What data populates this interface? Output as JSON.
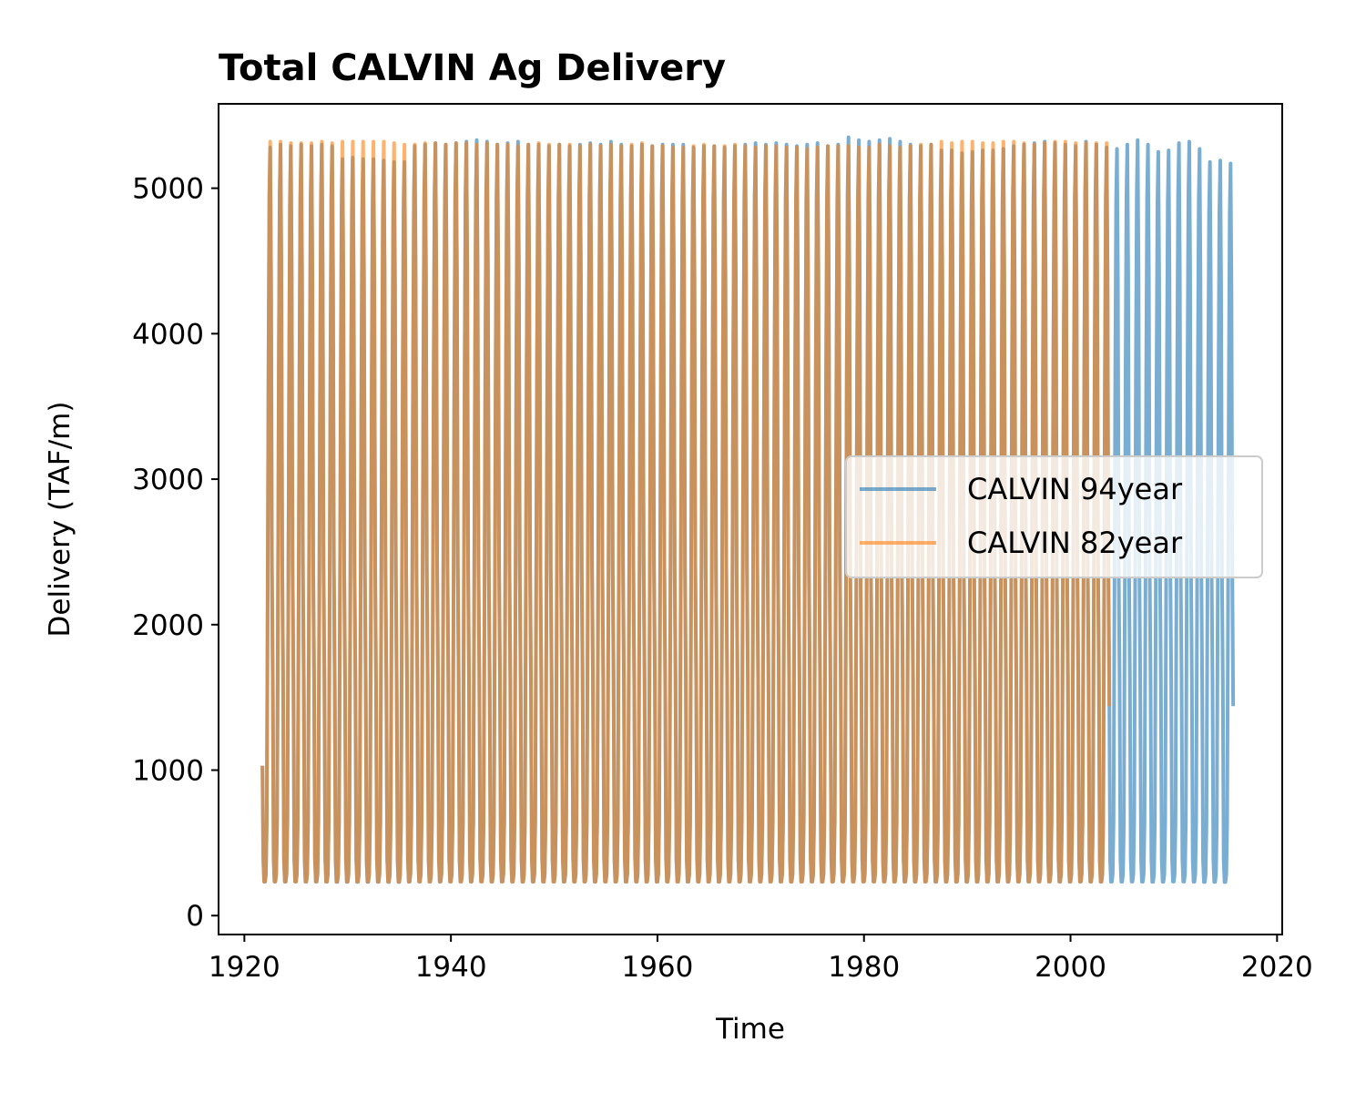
{
  "chart_data": {
    "type": "line",
    "title": "Total CALVIN Ag Delivery",
    "xlabel": "Time",
    "ylabel": "Delivery (TAF/m)",
    "xlim": [
      1917.5,
      2020.5
    ],
    "ylim": [
      -130,
      5580
    ],
    "xticks": [
      1920,
      1940,
      1960,
      1980,
      2000,
      2020
    ],
    "yticks": [
      0,
      1000,
      2000,
      3000,
      4000,
      5000
    ],
    "grid": false,
    "legend_position": "center-right",
    "x_unit": "year",
    "sampling": "monthly",
    "series": [
      {
        "name": "CALVIN 94year",
        "color": "#1f77b4",
        "alpha": 0.6,
        "start": 1921.75,
        "end": 2015.75,
        "annual_peaks": [
          5280,
          5300,
          5290,
          5300,
          5290,
          5300,
          5290,
          5200,
          5210,
          5200,
          5200,
          5190,
          5180,
          5180,
          5290,
          5300,
          5310,
          5300,
          5310,
          5320,
          5330,
          5320,
          5300,
          5310,
          5320,
          5300,
          5300,
          5290,
          5300,
          5290,
          5300,
          5310,
          5300,
          5320,
          5300,
          5290,
          5300,
          5290,
          5300,
          5300,
          5300,
          5280,
          5290,
          5290,
          5280,
          5290,
          5300,
          5310,
          5300,
          5310,
          5300,
          5290,
          5300,
          5310,
          5290,
          5300,
          5350,
          5330,
          5320,
          5330,
          5340,
          5320,
          5300,
          5290,
          5300,
          5260,
          5260,
          5240,
          5250,
          5260,
          5260,
          5270,
          5290,
          5300,
          5310,
          5320,
          5310,
          5300,
          5290,
          5320,
          5300,
          5280,
          5270,
          5300,
          5330,
          5300,
          5250,
          5260,
          5310,
          5320,
          5270,
          5180,
          5190,
          5170
        ],
        "annual_troughs": [
          130,
          130,
          130,
          130,
          130,
          130,
          130,
          130,
          130,
          130,
          130,
          130,
          130,
          130,
          130,
          130,
          130,
          130,
          130,
          130,
          130,
          130,
          130,
          130,
          130,
          130,
          130,
          130,
          130,
          130,
          130,
          130,
          130,
          130,
          130,
          130,
          130,
          130,
          130,
          130,
          130,
          130,
          130,
          130,
          130,
          130,
          130,
          130,
          130,
          130,
          130,
          130,
          130,
          130,
          130,
          130,
          130,
          130,
          130,
          130,
          130,
          130,
          130,
          130,
          130,
          130,
          130,
          130,
          130,
          130,
          130,
          130,
          130,
          130,
          130,
          130,
          130,
          130,
          130,
          130,
          130,
          130,
          130,
          130,
          130,
          130,
          130,
          130,
          130,
          130,
          130,
          130,
          130,
          130
        ],
        "start_value": 1030,
        "end_value": 1440
      },
      {
        "name": "CALVIN 82year",
        "color": "#ff7f0e",
        "alpha": 0.6,
        "start": 1921.75,
        "end": 2003.75,
        "annual_peaks": [
          5320,
          5320,
          5310,
          5310,
          5310,
          5320,
          5310,
          5320,
          5320,
          5320,
          5320,
          5320,
          5310,
          5300,
          5300,
          5310,
          5310,
          5300,
          5310,
          5310,
          5300,
          5310,
          5300,
          5300,
          5290,
          5300,
          5310,
          5300,
          5300,
          5300,
          5290,
          5300,
          5290,
          5300,
          5290,
          5300,
          5310,
          5290,
          5290,
          5280,
          5280,
          5290,
          5300,
          5290,
          5290,
          5300,
          5290,
          5280,
          5290,
          5290,
          5280,
          5280,
          5270,
          5280,
          5290,
          5290,
          5290,
          5280,
          5280,
          5300,
          5290,
          5280,
          5290,
          5300,
          5300,
          5320,
          5310,
          5320,
          5320,
          5310,
          5310,
          5320,
          5320,
          5310,
          5300,
          5310,
          5320,
          5320,
          5310,
          5310,
          5310,
          5310
        ],
        "annual_troughs": [
          130,
          130,
          130,
          130,
          130,
          130,
          130,
          130,
          130,
          130,
          130,
          130,
          130,
          130,
          130,
          130,
          130,
          130,
          130,
          130,
          130,
          130,
          130,
          130,
          130,
          130,
          130,
          130,
          130,
          130,
          130,
          130,
          130,
          130,
          130,
          130,
          130,
          130,
          130,
          130,
          130,
          130,
          130,
          130,
          130,
          130,
          130,
          130,
          130,
          130,
          130,
          130,
          130,
          130,
          130,
          130,
          130,
          130,
          130,
          130,
          130,
          130,
          130,
          130,
          130,
          130,
          130,
          130,
          130,
          130,
          130,
          130,
          130,
          130,
          130,
          130,
          130,
          130,
          130,
          130,
          130,
          130
        ],
        "start_value": 1030,
        "end_value": 1440
      }
    ]
  }
}
